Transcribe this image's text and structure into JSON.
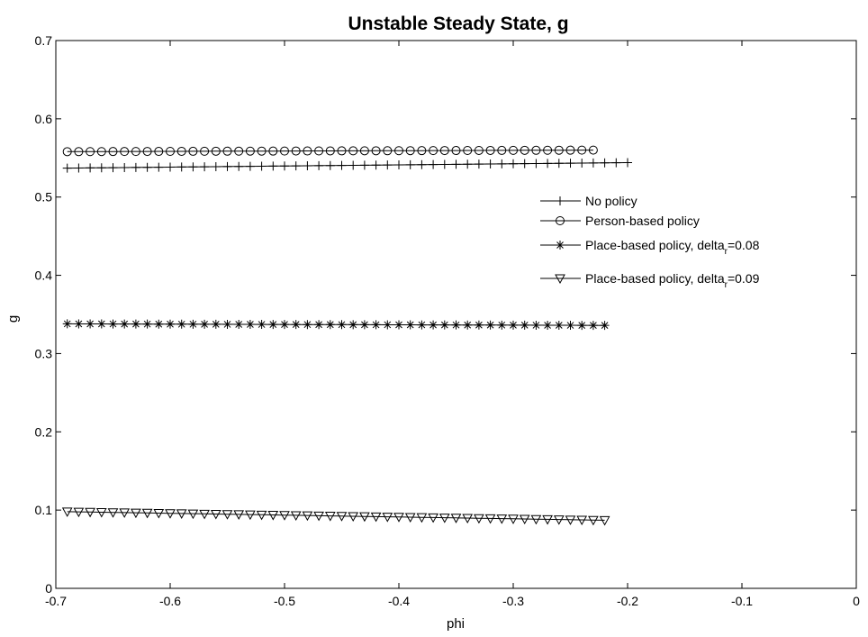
{
  "chart_data": {
    "type": "line",
    "title": "Unstable Steady State, g",
    "xlabel": "phi",
    "ylabel": "g",
    "xlim": [
      -0.7,
      0
    ],
    "ylim": [
      0,
      0.7
    ],
    "xticks": [
      -0.7,
      -0.6,
      -0.5,
      -0.4,
      -0.3,
      -0.2,
      -0.1,
      0
    ],
    "xtick_labels": [
      "-0.7",
      "-0.6",
      "-0.5",
      "-0.4",
      "-0.3",
      "-0.2",
      "-0.1",
      "0"
    ],
    "yticks": [
      0,
      0.1,
      0.2,
      0.3,
      0.4,
      0.5,
      0.6,
      0.7
    ],
    "ytick_labels": [
      "0",
      "0.1",
      "0.2",
      "0.3",
      "0.4",
      "0.5",
      "0.6",
      "0.7"
    ],
    "grid": false,
    "legend_position": "right",
    "series": [
      {
        "name": "No policy",
        "marker": "plus",
        "x_start": -0.69,
        "x_end": -0.2,
        "x_step": 0.01,
        "y_start": 0.537,
        "y_end": 0.544
      },
      {
        "name": "Person-based policy",
        "marker": "circle",
        "x_start": -0.69,
        "x_end": -0.23,
        "x_step": 0.01,
        "y_start": 0.558,
        "y_end": 0.56
      },
      {
        "name": "Place-based policy, delta_r=0.08",
        "legend_main": "Place-based policy, delta",
        "legend_sub": "r",
        "legend_tail": "=0.08",
        "marker": "asterisk",
        "x_start": -0.69,
        "x_end": -0.22,
        "x_step": 0.01,
        "y_start": 0.338,
        "y_end": 0.336
      },
      {
        "name": "Place-based policy, delta_r=0.09",
        "legend_main": "Place-based policy, delta",
        "legend_sub": "r",
        "legend_tail": "=0.09",
        "marker": "triangle-down",
        "x_start": -0.69,
        "x_end": -0.22,
        "x_step": 0.01,
        "y_start": 0.098,
        "y_end": 0.087
      }
    ]
  }
}
